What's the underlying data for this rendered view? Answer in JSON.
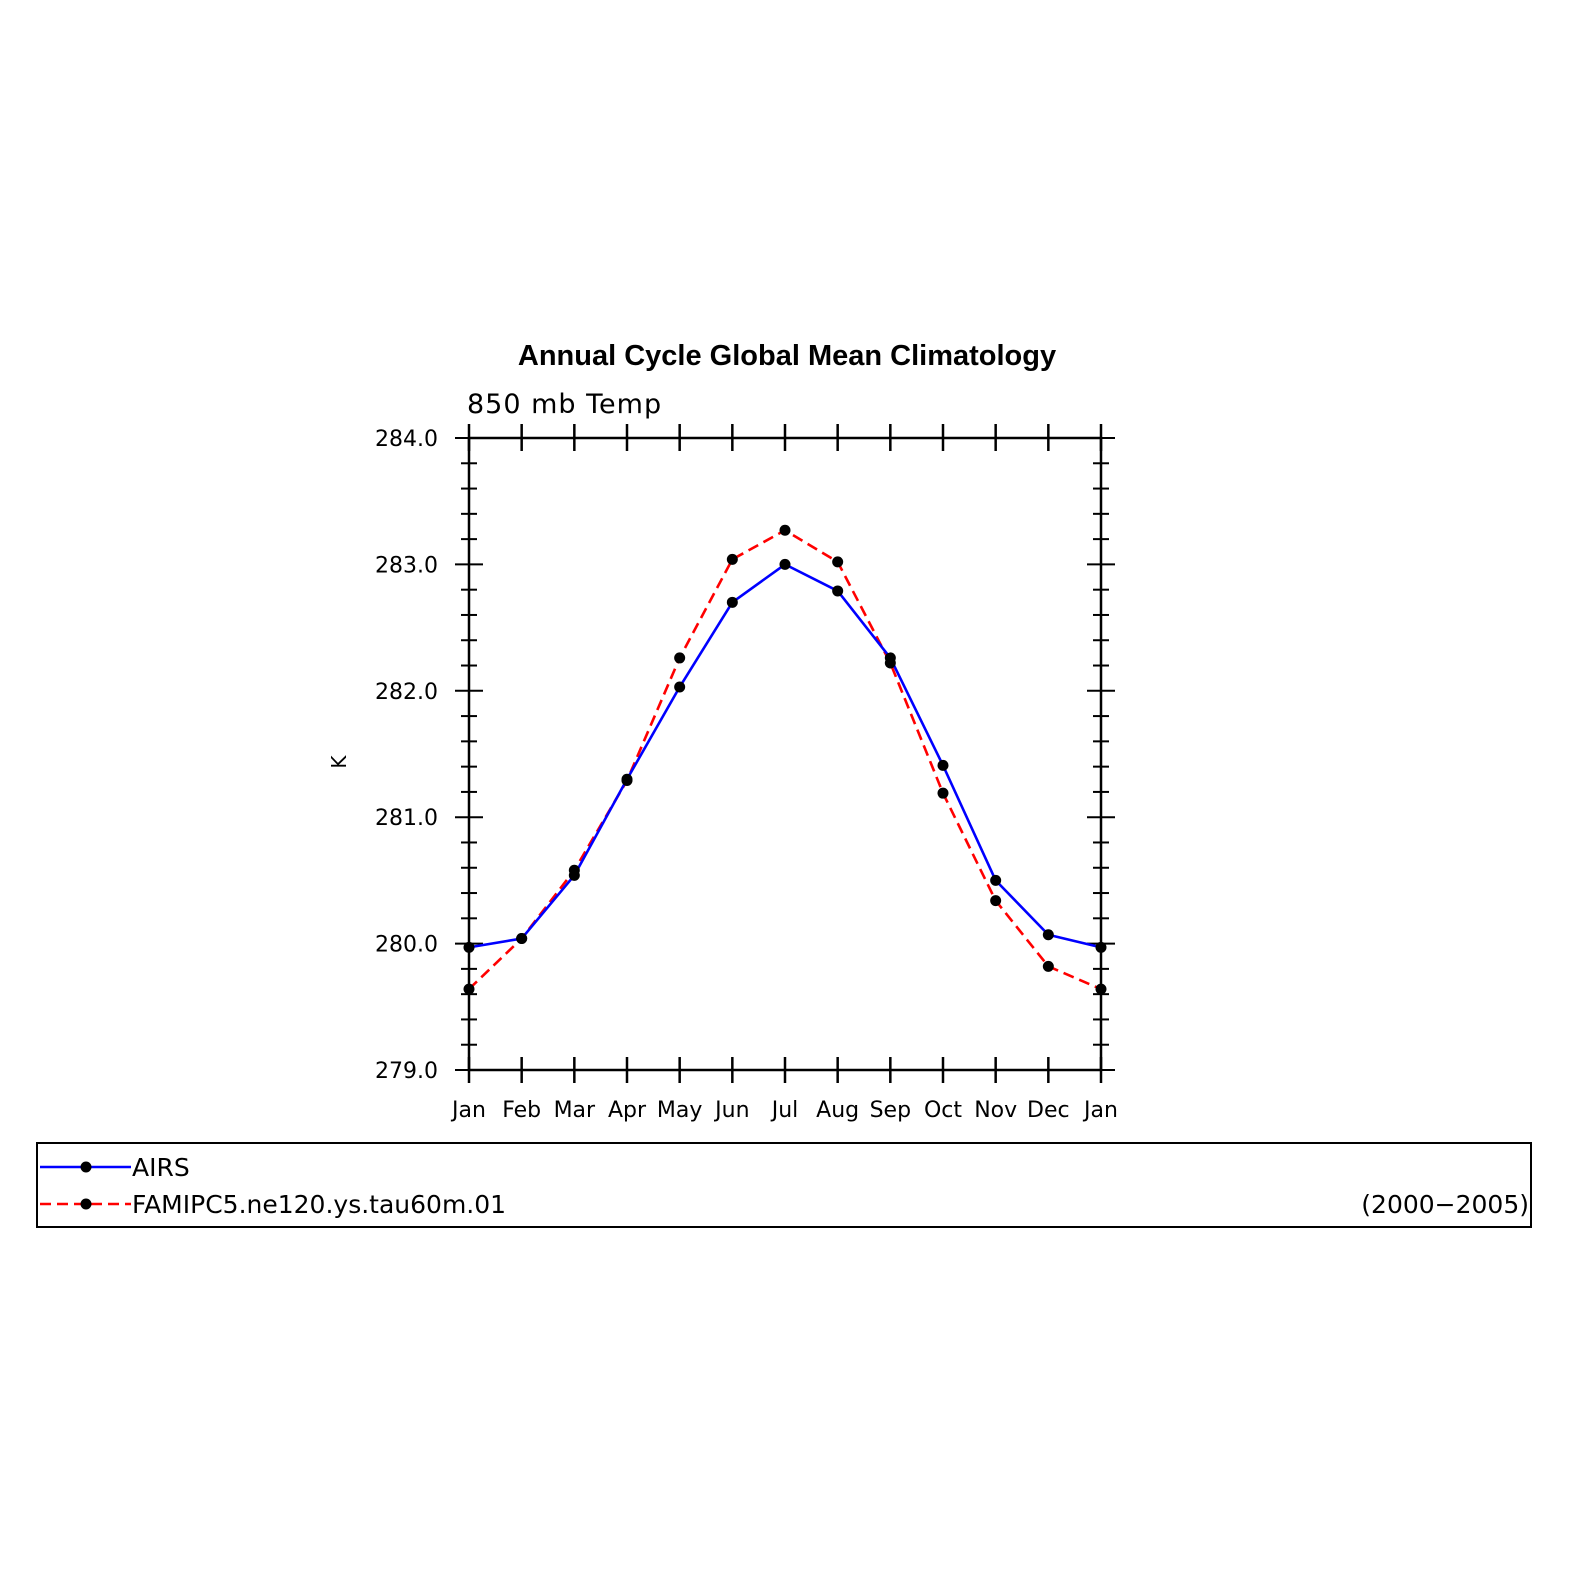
{
  "chart_data": {
    "type": "line",
    "title": "Annual Cycle Global Mean Climatology",
    "subtitle": "850 mb Temp",
    "ylabel": "K",
    "xlabel": "",
    "categories": [
      "Jan",
      "Feb",
      "Mar",
      "Apr",
      "May",
      "Jun",
      "Jul",
      "Aug",
      "Sep",
      "Oct",
      "Nov",
      "Dec",
      "Jan"
    ],
    "ylim": [
      279.0,
      284.0
    ],
    "yticks": [
      "279.0",
      "280.0",
      "281.0",
      "282.0",
      "283.0",
      "284.0"
    ],
    "grid": false,
    "legend_position": "bottom",
    "period_label": "(2000−2005)",
    "series": [
      {
        "name": "AIRS",
        "color": "#0000ff",
        "style": "solid",
        "values": [
          279.97,
          280.04,
          280.54,
          281.3,
          282.03,
          282.7,
          283.0,
          282.79,
          282.26,
          281.41,
          280.5,
          280.07,
          279.97
        ]
      },
      {
        "name": "FAMIPC5.ne120.ys.tau60m.01",
        "color": "#ff0000",
        "style": "dashed",
        "values": [
          279.64,
          280.04,
          280.58,
          281.29,
          282.26,
          283.04,
          283.27,
          283.02,
          282.22,
          281.19,
          280.34,
          279.82,
          279.64
        ]
      }
    ]
  }
}
